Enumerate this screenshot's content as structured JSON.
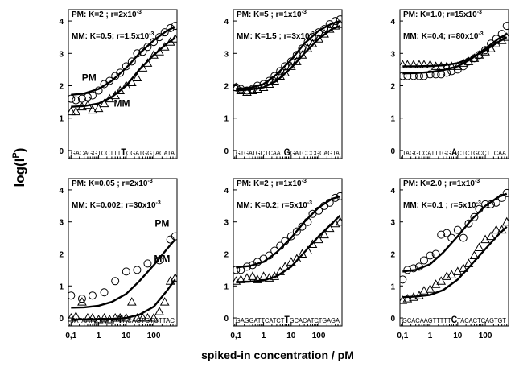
{
  "figure": {
    "ylabel": "log(I",
    "ylabel_sup": "P",
    "ylabel_close": ")",
    "xlabel": "spiked-in concentration  /  pM",
    "xticks": [
      0.1,
      1,
      10,
      100
    ],
    "xtick_labels": [
      "0,1",
      "1",
      "10",
      "100"
    ],
    "yticks": [
      0,
      1,
      2,
      3,
      4
    ],
    "ytick_labels": [
      "0",
      "1",
      "2",
      "3",
      "4"
    ],
    "xlim": [
      0.08,
      700
    ],
    "ylim": [
      -0.25,
      4.35
    ],
    "xscale": "log",
    "line_color": "#000000",
    "marker_color": "#000000"
  },
  "chart_data": [
    {
      "type": "scatter",
      "panel": "top-left",
      "pm_label": "PM:  K=2  ; r=2x10",
      "pm_exp": "-3",
      "mm_label": "MM: K=0.5; r=1.5x10",
      "mm_exp": "-3",
      "seq_pre": "GACAGGTCCTTT",
      "seq_base": "T",
      "seq_post": "CGATGGTACATA",
      "series_labels": [
        {
          "text": "PM",
          "x": 0.45,
          "y": 2.15
        },
        {
          "text": "MM",
          "x": 7,
          "y": 1.35
        }
      ],
      "series": [
        {
          "name": "PM",
          "marker": "circle",
          "x": [
            0.1,
            0.15,
            0.25,
            0.4,
            0.6,
            1,
            1.6,
            2.5,
            4,
            6,
            10,
            16,
            25,
            40,
            60,
            100,
            160,
            250,
            400,
            600
          ],
          "y": [
            1.6,
            1.55,
            1.6,
            1.65,
            1.7,
            1.85,
            2.05,
            2.15,
            2.3,
            2.4,
            2.6,
            2.75,
            3.0,
            3.05,
            3.2,
            3.35,
            3.5,
            3.65,
            3.78,
            3.85
          ],
          "curve_x": [
            0.1,
            0.3,
            1,
            3,
            10,
            30,
            100,
            300,
            600
          ],
          "curve_y": [
            1.72,
            1.76,
            1.9,
            2.15,
            2.55,
            3.0,
            3.4,
            3.7,
            3.82
          ]
        },
        {
          "name": "MM",
          "marker": "triangle",
          "x": [
            0.1,
            0.15,
            0.25,
            0.4,
            0.6,
            1,
            1.6,
            2.5,
            4,
            6,
            10,
            16,
            25,
            40,
            60,
            100,
            160,
            250,
            400,
            600
          ],
          "y": [
            1.2,
            1.2,
            1.35,
            1.4,
            1.25,
            1.3,
            1.45,
            1.6,
            1.7,
            1.85,
            2.0,
            2.1,
            2.25,
            2.55,
            2.7,
            2.95,
            3.05,
            3.2,
            3.35,
            3.45
          ],
          "curve_x": [
            0.1,
            0.3,
            1,
            3,
            10,
            30,
            100,
            300,
            600
          ],
          "curve_y": [
            1.35,
            1.37,
            1.45,
            1.65,
            2.0,
            2.5,
            2.95,
            3.3,
            3.48
          ]
        }
      ]
    },
    {
      "type": "scatter",
      "panel": "top-center",
      "pm_label": "PM:  K=5     ; r=1x10",
      "pm_exp": "-3",
      "mm_label": "MM: K=1.5  ; r=3x10",
      "mm_exp": "-3",
      "seq_pre": "GTGATGCTCAAT",
      "seq_base": "G",
      "seq_post": "GATCCCGCAGTA",
      "series_labels": [],
      "series": [
        {
          "name": "PM",
          "marker": "circle",
          "x": [
            0.1,
            0.15,
            0.25,
            0.4,
            0.6,
            1,
            1.6,
            2.5,
            4,
            6,
            10,
            16,
            25,
            40,
            60,
            100,
            160,
            250,
            400,
            600
          ],
          "y": [
            1.95,
            1.9,
            1.85,
            1.9,
            2.0,
            2.05,
            2.15,
            2.3,
            2.45,
            2.6,
            2.75,
            2.95,
            3.15,
            3.35,
            3.5,
            3.65,
            3.75,
            3.9,
            4.0,
            4.05
          ],
          "curve_x": [
            0.1,
            0.3,
            1,
            3,
            10,
            30,
            100,
            300,
            600
          ],
          "curve_y": [
            1.9,
            1.93,
            2.05,
            2.35,
            2.8,
            3.3,
            3.7,
            3.92,
            4.0
          ]
        },
        {
          "name": "MM",
          "marker": "triangle",
          "x": [
            0.1,
            0.15,
            0.25,
            0.4,
            0.6,
            1,
            1.6,
            2.5,
            4,
            6,
            10,
            16,
            25,
            40,
            60,
            100,
            160,
            250,
            400,
            600
          ],
          "y": [
            1.95,
            1.85,
            1.8,
            1.85,
            1.9,
            1.95,
            2.05,
            2.15,
            2.3,
            2.4,
            2.6,
            2.75,
            2.95,
            3.15,
            3.3,
            3.45,
            3.6,
            3.75,
            3.85,
            3.9
          ],
          "curve_x": [
            0.1,
            0.3,
            1,
            3,
            10,
            30,
            100,
            300,
            600
          ],
          "curve_y": [
            1.85,
            1.88,
            1.95,
            2.15,
            2.55,
            3.0,
            3.45,
            3.75,
            3.85
          ]
        }
      ]
    },
    {
      "type": "scatter",
      "panel": "top-right",
      "pm_label": "PM:  K=1.0; r=15x10",
      "pm_exp": "-3",
      "mm_label": "MM: K=0.4; r=80x10",
      "mm_exp": "-3",
      "seq_pre": "TAGGCCATTTGG",
      "seq_base": "A",
      "seq_post": "CTCTGCCTTCAA",
      "series_labels": [],
      "series": [
        {
          "name": "PM",
          "marker": "circle",
          "x": [
            0.1,
            0.15,
            0.25,
            0.4,
            0.6,
            1,
            1.6,
            2.5,
            4,
            6,
            10,
            16,
            25,
            40,
            60,
            100,
            160,
            250,
            400,
            600
          ],
          "y": [
            2.3,
            2.3,
            2.3,
            2.3,
            2.3,
            2.35,
            2.35,
            2.35,
            2.4,
            2.45,
            2.5,
            2.6,
            2.75,
            2.85,
            2.95,
            3.1,
            3.3,
            3.45,
            3.6,
            3.85
          ],
          "curve_x": [
            0.1,
            0.3,
            1,
            3,
            10,
            30,
            100,
            300,
            600
          ],
          "curve_y": [
            2.38,
            2.39,
            2.42,
            2.48,
            2.6,
            2.82,
            3.15,
            3.45,
            3.6
          ]
        },
        {
          "name": "MM",
          "marker": "triangle",
          "x": [
            0.1,
            0.15,
            0.25,
            0.4,
            0.6,
            1,
            1.6,
            2.5,
            4,
            6,
            10,
            16,
            25,
            40,
            60,
            100,
            160,
            250,
            400,
            600
          ],
          "y": [
            2.65,
            2.65,
            2.65,
            2.65,
            2.65,
            2.65,
            2.6,
            2.6,
            2.6,
            2.6,
            2.6,
            2.7,
            2.75,
            2.85,
            2.95,
            3.05,
            3.15,
            3.3,
            3.4,
            3.5
          ],
          "curve_x": [
            0.1,
            0.3,
            1,
            3,
            10,
            30,
            100,
            300,
            600
          ],
          "curve_y": [
            2.6,
            2.6,
            2.61,
            2.63,
            2.7,
            2.85,
            3.1,
            3.35,
            3.5
          ]
        }
      ]
    },
    {
      "type": "scatter",
      "panel": "bottom-left",
      "pm_label": "PM:  K=0.05 ; r=2x10",
      "pm_exp": "-3",
      "mm_label": "MM: K=0.002; r=30x10",
      "mm_exp": "-3",
      "seq_pre": "TATAATCTTTTA",
      "seq_base": "T",
      "seq_post": "ACAGTGTCTTAC",
      "series_labels": [
        {
          "text": "PM",
          "x": 200,
          "y": 2.85
        },
        {
          "text": "MM",
          "x": 200,
          "y": 1.75
        }
      ],
      "series": [
        {
          "name": "PM",
          "marker": "circle",
          "x": [
            0.1,
            0.25,
            0.6,
            1.6,
            4,
            10,
            25,
            60,
            160,
            400,
            600
          ],
          "y": [
            0.7,
            0.6,
            0.7,
            0.8,
            1.15,
            1.45,
            1.5,
            1.7,
            1.8,
            2.45,
            2.55
          ],
          "curve_x": [
            0.1,
            0.3,
            1,
            3,
            10,
            30,
            100,
            300,
            600
          ],
          "curve_y": [
            0.32,
            0.33,
            0.38,
            0.5,
            0.75,
            1.15,
            1.65,
            2.15,
            2.45
          ]
        },
        {
          "name": "MM",
          "marker": "triangle",
          "x": [
            0.1,
            0.15,
            0.25,
            0.4,
            0.6,
            1,
            1.6,
            2.5,
            4,
            6,
            10,
            16,
            25,
            40,
            60,
            100,
            160,
            250,
            400,
            600
          ],
          "y": [
            0.0,
            0.05,
            0.5,
            0.0,
            0.0,
            -0.05,
            0.0,
            -0.05,
            0.0,
            0.0,
            0.0,
            0.5,
            0.0,
            0.0,
            0.0,
            0.0,
            0.2,
            0.5,
            1.15,
            1.25
          ],
          "curve_x": [
            0.1,
            1,
            3,
            10,
            30,
            100,
            300,
            600
          ],
          "curve_y": [
            -0.05,
            -0.04,
            -0.03,
            0.0,
            0.1,
            0.35,
            0.85,
            1.2
          ]
        }
      ]
    },
    {
      "type": "scatter",
      "panel": "bottom-center",
      "pm_label": "PM:  K=2    ; r=1x10",
      "pm_exp": "-3",
      "mm_label": "MM: K=0.2; r=5x10",
      "mm_exp": "-3",
      "seq_pre": "GAGGATTCATCT",
      "seq_base": "T",
      "seq_post": "GCACATCTGAGA",
      "series_labels": [],
      "series": [
        {
          "name": "PM",
          "marker": "circle",
          "x": [
            0.1,
            0.15,
            0.25,
            0.4,
            0.6,
            1,
            1.6,
            2.5,
            4,
            6,
            10,
            16,
            25,
            40,
            60,
            100,
            160,
            250,
            400,
            600
          ],
          "y": [
            1.5,
            1.5,
            1.6,
            1.65,
            1.75,
            1.85,
            1.95,
            2.1,
            2.25,
            2.4,
            2.55,
            2.7,
            2.85,
            3.0,
            3.25,
            3.35,
            3.5,
            3.6,
            3.75,
            3.8
          ],
          "curve_x": [
            0.1,
            0.3,
            1,
            3,
            10,
            30,
            100,
            300,
            600
          ],
          "curve_y": [
            1.58,
            1.62,
            1.75,
            2.05,
            2.5,
            3.0,
            3.45,
            3.72,
            3.8
          ]
        },
        {
          "name": "MM",
          "marker": "triangle",
          "x": [
            0.1,
            0.15,
            0.25,
            0.4,
            0.6,
            1,
            1.6,
            2.5,
            4,
            6,
            10,
            16,
            25,
            40,
            60,
            100,
            160,
            250,
            400,
            600
          ],
          "y": [
            1.15,
            1.2,
            1.25,
            1.3,
            1.2,
            1.3,
            1.25,
            1.3,
            1.45,
            1.6,
            1.75,
            1.85,
            2.0,
            2.1,
            2.3,
            2.45,
            2.6,
            2.8,
            2.95,
            3.0
          ],
          "curve_x": [
            0.1,
            0.3,
            1,
            3,
            10,
            30,
            100,
            300,
            600
          ],
          "curve_y": [
            1.12,
            1.13,
            1.17,
            1.3,
            1.6,
            2.05,
            2.55,
            2.95,
            3.2
          ]
        }
      ]
    },
    {
      "type": "scatter",
      "panel": "bottom-right",
      "pm_label": "PM:  K=2.0  ; r=1x10",
      "pm_exp": "-3",
      "mm_label": "MM: K=0.1  ; r=5x10",
      "mm_exp": "-3",
      "seq_pre": "GCACAAGTTTTT",
      "seq_base": "C",
      "seq_post": "TACACTCAGTGT",
      "series_labels": [],
      "series": [
        {
          "name": "PM",
          "marker": "circle",
          "x": [
            0.1,
            0.15,
            0.25,
            0.4,
            0.6,
            1,
            1.6,
            2.5,
            4,
            6,
            10,
            16,
            25,
            40,
            60,
            100,
            160,
            250,
            400,
            600
          ],
          "y": [
            1.2,
            1.5,
            1.55,
            1.6,
            1.8,
            1.95,
            2.0,
            2.6,
            2.65,
            2.5,
            2.75,
            2.5,
            2.95,
            3.15,
            3.4,
            3.55,
            3.55,
            3.6,
            3.75,
            3.9
          ],
          "curve_x": [
            0.1,
            0.3,
            1,
            3,
            10,
            30,
            100,
            300,
            600
          ],
          "curve_y": [
            1.45,
            1.5,
            1.68,
            2.05,
            2.55,
            3.05,
            3.5,
            3.78,
            3.88
          ]
        },
        {
          "name": "MM",
          "marker": "triangle",
          "x": [
            0.1,
            0.15,
            0.25,
            0.4,
            0.6,
            1,
            1.6,
            2.5,
            4,
            6,
            10,
            16,
            25,
            40,
            60,
            100,
            160,
            250,
            400,
            600
          ],
          "y": [
            0.55,
            0.6,
            0.65,
            0.7,
            0.85,
            0.9,
            1.05,
            1.15,
            1.3,
            1.35,
            1.45,
            1.55,
            1.7,
            1.95,
            2.2,
            2.45,
            2.55,
            2.75,
            2.75,
            3.0
          ],
          "curve_x": [
            0.1,
            0.3,
            1,
            3,
            10,
            30,
            100,
            300,
            600
          ],
          "curve_y": [
            0.65,
            0.67,
            0.72,
            0.87,
            1.2,
            1.65,
            2.15,
            2.6,
            2.85
          ]
        }
      ]
    }
  ]
}
